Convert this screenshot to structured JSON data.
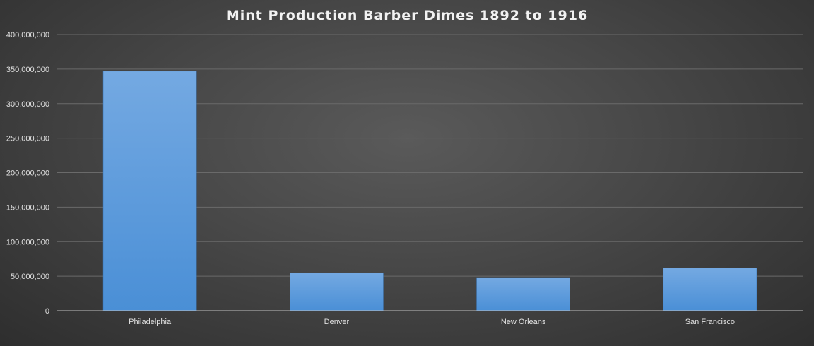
{
  "chart_data": {
    "type": "bar",
    "title": "Mint Production Barber Dimes 1892 to 1916",
    "xlabel": "",
    "ylabel": "",
    "categories": [
      "Philadelphia",
      "Denver",
      "New Orleans",
      "San Francisco"
    ],
    "values": [
      347000000,
      55000000,
      48000000,
      62000000
    ],
    "ylim": [
      0,
      400000000
    ],
    "yticks": [
      "0",
      "50,000,000",
      "100,000,000",
      "150,000,000",
      "200,000,000",
      "250,000,000",
      "300,000,000",
      "350,000,000",
      "400,000,000"
    ],
    "grid": true,
    "legend": "none",
    "bar_color": "#5b9bd5"
  }
}
